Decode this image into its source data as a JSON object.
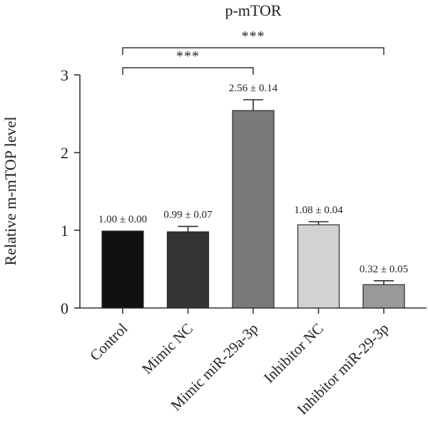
{
  "chart_data": {
    "type": "bar",
    "title": "p-mTOR",
    "ylabel": "Relative m-mTOP level",
    "xlabel": "",
    "ylim": [
      0,
      3
    ],
    "yticks": [
      0,
      1,
      2,
      3
    ],
    "grid": false,
    "categories": [
      "Control",
      "Mimic NC",
      "Mimic miR-29a-3p",
      "Inhibitor NC",
      "Inhibitor miR-29-3p"
    ],
    "values": [
      1.0,
      0.99,
      2.56,
      1.08,
      0.32
    ],
    "errors": [
      0.0,
      0.07,
      0.14,
      0.04,
      0.05
    ],
    "plotted_heights": [
      0.99,
      0.98,
      2.54,
      1.07,
      0.3
    ],
    "bar_colors": [
      "#111111",
      "#333333",
      "#7a7a7a",
      "#d2d2d2",
      "#999999"
    ],
    "data_labels": [
      "1.00 ± 0.00",
      "0.99 ± 0.07",
      "2.56 ± 0.14",
      "1.08 ± 0.04",
      "0.32 ± 0.05"
    ],
    "significance": [
      {
        "from": "Control",
        "to": "Mimic miR-29a-3p",
        "label": "***"
      },
      {
        "from": "Control",
        "to": "Inhibitor miR-29-3p",
        "label": "***"
      }
    ]
  }
}
